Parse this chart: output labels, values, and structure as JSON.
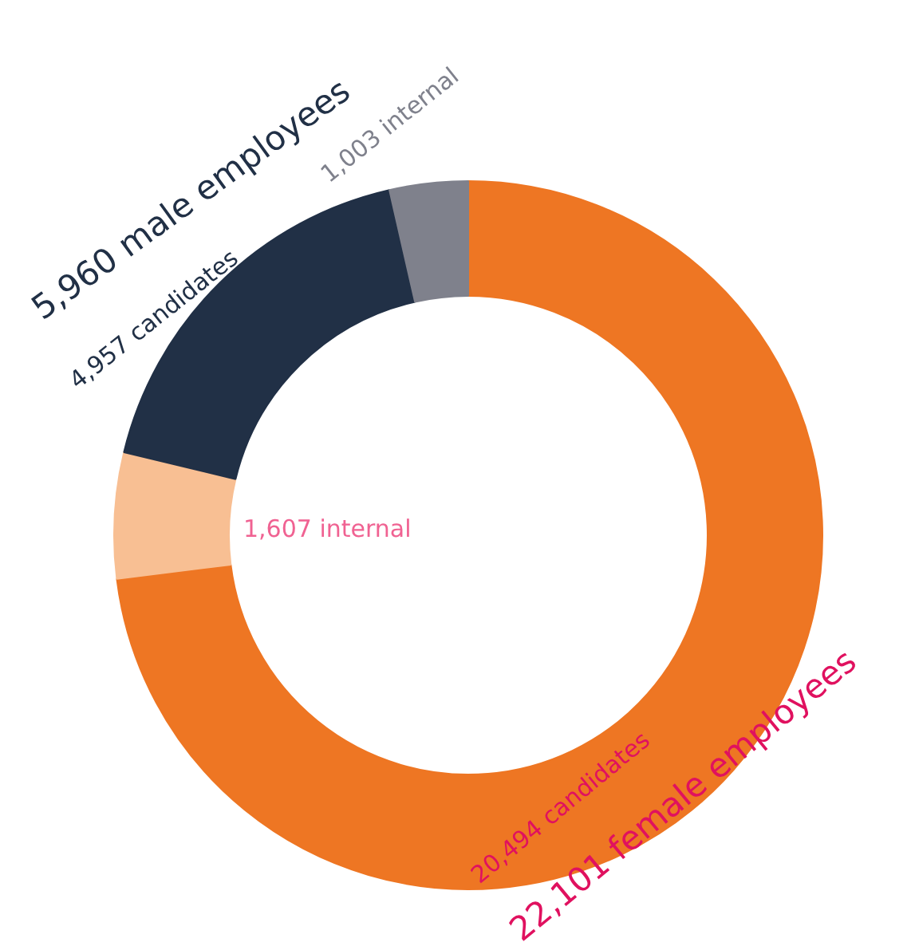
{
  "chart_data": {
    "type": "donut",
    "categories": [
      "20,494 candidates",
      "1,607 internal",
      "4,957 candidates",
      "1,003 internal"
    ],
    "values": [
      20494,
      1607,
      4957,
      1003
    ],
    "colors": [
      "#ee7623",
      "#f8bf93",
      "#213046",
      "#7f818c"
    ],
    "annotations": [
      "22,101 female employees",
      "5,960 male employees"
    ]
  }
}
